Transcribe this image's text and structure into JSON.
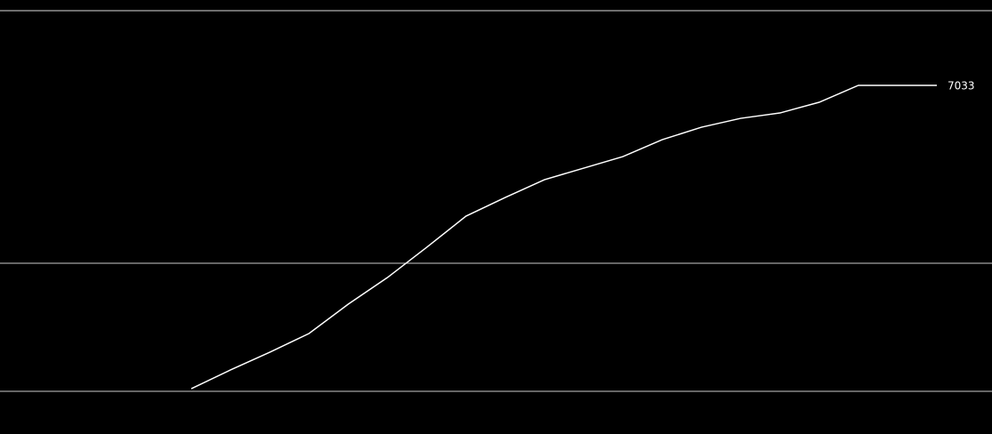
{
  "chart_data": {
    "type": "line",
    "categories": [
      null,
      null,
      null,
      null,
      null,
      null,
      null,
      null,
      null,
      null,
      null,
      null,
      null,
      null,
      null,
      null,
      null,
      null,
      null,
      null
    ],
    "series": [
      {
        "color": "#ffffff",
        "values": [
          61,
          491,
          899,
          1329,
          2003,
          2616,
          3311,
          4026,
          4456,
          4865,
          5130,
          5396,
          5784,
          6071,
          6275,
          6398,
          6644,
          7033,
          7033,
          7033
        ]
      }
    ],
    "ylim": [
      0,
      8750
    ]
  }
}
